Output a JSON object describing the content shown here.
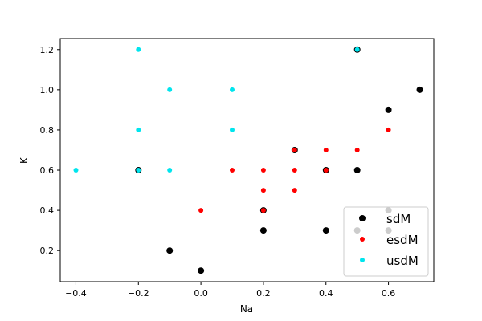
{
  "chart_data": {
    "type": "scatter",
    "title": "",
    "xlabel": "Na",
    "ylabel": "K",
    "xlim": [
      -0.45,
      0.745
    ],
    "ylim": [
      0.045,
      1.255
    ],
    "xticks": [
      -0.4,
      -0.2,
      0.0,
      0.2,
      0.4,
      0.6
    ],
    "xtick_labels": [
      "−0.4",
      "−0.2",
      "0.0",
      "0.2",
      "0.4",
      "0.6"
    ],
    "yticks": [
      0.2,
      0.4,
      0.6,
      0.8,
      1.0,
      1.2
    ],
    "ytick_labels": [
      "0.2",
      "0.4",
      "0.6",
      "0.8",
      "1.0",
      "1.2"
    ],
    "grid": false,
    "legend_position": "bottom-right",
    "series": [
      {
        "name": "sdM",
        "color": "#000000",
        "points": [
          [
            -0.1,
            0.2
          ],
          [
            0.0,
            0.1
          ],
          [
            0.2,
            0.3
          ],
          [
            0.2,
            0.4
          ],
          [
            0.3,
            0.7
          ],
          [
            0.4,
            0.3
          ],
          [
            0.4,
            0.6
          ],
          [
            0.5,
            0.3
          ],
          [
            0.5,
            0.6
          ],
          [
            0.6,
            0.3
          ],
          [
            0.6,
            0.4
          ],
          [
            0.6,
            0.9
          ],
          [
            0.7,
            1.0
          ],
          [
            -0.2,
            0.6
          ],
          [
            0.5,
            1.2
          ]
        ]
      },
      {
        "name": "esdM",
        "color": "#ff0000",
        "points": [
          [
            0.0,
            0.4
          ],
          [
            0.1,
            0.6
          ],
          [
            0.2,
            0.4
          ],
          [
            0.2,
            0.5
          ],
          [
            0.2,
            0.6
          ],
          [
            0.3,
            0.5
          ],
          [
            0.3,
            0.6
          ],
          [
            0.3,
            0.7
          ],
          [
            0.4,
            0.6
          ],
          [
            0.4,
            0.7
          ],
          [
            0.5,
            0.7
          ],
          [
            0.6,
            0.8
          ]
        ]
      },
      {
        "name": "usdM",
        "color": "#00e5ee",
        "points": [
          [
            -0.4,
            0.6
          ],
          [
            -0.2,
            0.6
          ],
          [
            -0.2,
            0.8
          ],
          [
            -0.2,
            1.2
          ],
          [
            -0.1,
            0.6
          ],
          [
            -0.1,
            1.0
          ],
          [
            0.1,
            0.8
          ],
          [
            0.1,
            1.0
          ],
          [
            0.5,
            1.2
          ]
        ]
      }
    ]
  }
}
